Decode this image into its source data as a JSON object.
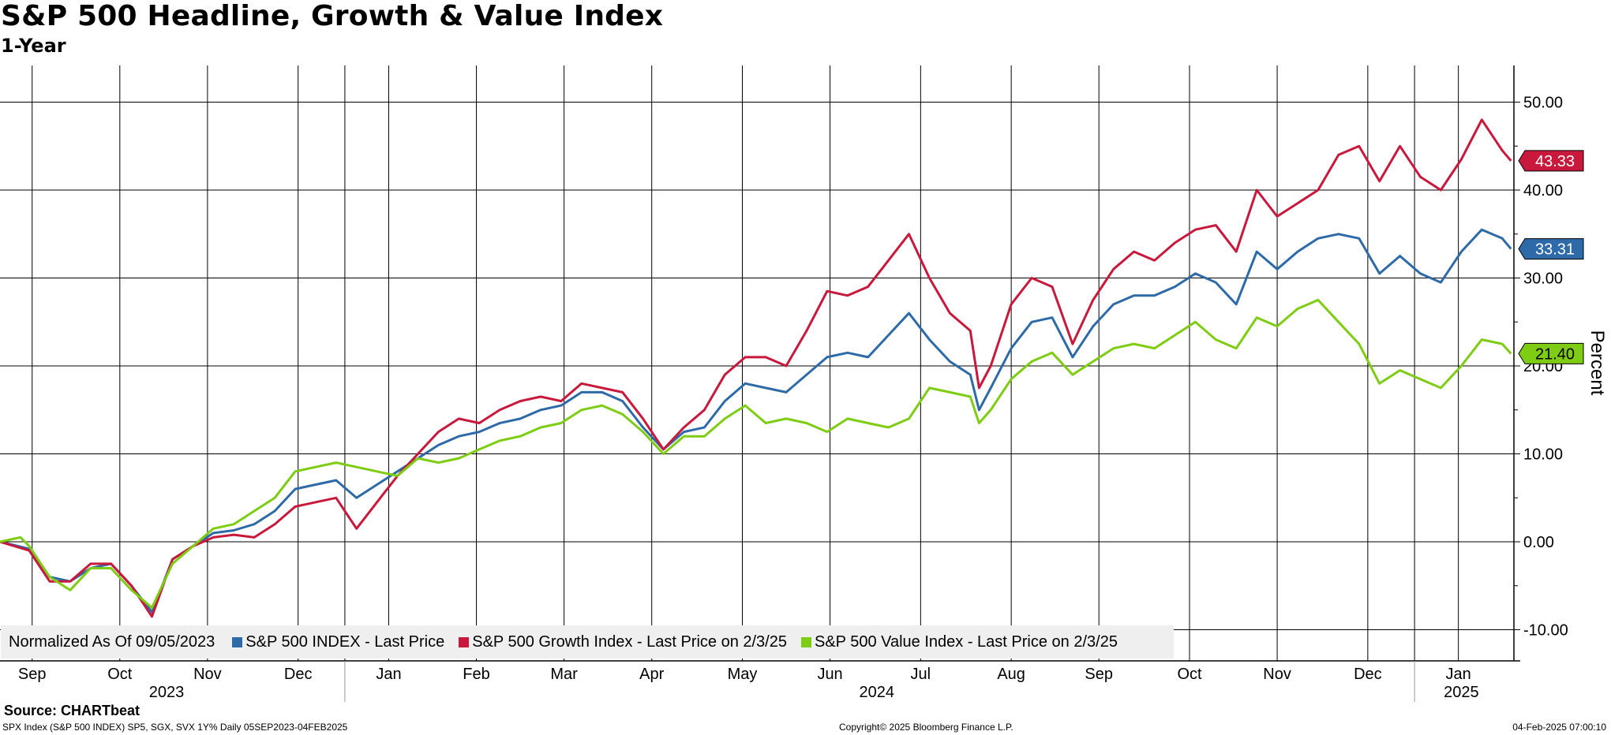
{
  "header": {
    "title": "S&P 500 Headline, Growth & Value Index",
    "subtitle": "1-Year"
  },
  "legend": {
    "note": "Normalized As Of 09/05/2023",
    "items": [
      {
        "label": "S&P 500 INDEX - Last Price",
        "color": "#2e6aa8"
      },
      {
        "label": "S&P 500 Growth Index - Last Price on 2/3/25",
        "color": "#c8193c"
      },
      {
        "label": "S&P 500 Value Index - Last Price on 2/3/25",
        "color": "#7ecc14"
      }
    ]
  },
  "footer": {
    "source": "Source: CHARTbeat",
    "left": "SPX Index (S&P 500 INDEX) SP5, SGX, SVX 1Y%  Daily 05SEP2023-04FEB2025",
    "middle": "Copyright© 2025 Bloomberg Finance L.P.",
    "right": "04-Feb-2025 07:00:10"
  },
  "chart_data": {
    "type": "line",
    "title": "S&P 500 Headline, Growth & Value Index",
    "subtitle": "1-Year",
    "ylabel": "Percent",
    "y_axis_position": "right",
    "ylim": [
      -14,
      53
    ],
    "yticks": [
      "50.00",
      "40.00",
      "30.00",
      "20.00",
      "10.00",
      "0.00",
      "-10.00"
    ],
    "ytick_values": [
      50,
      40,
      30,
      20,
      10,
      0,
      -10
    ],
    "xlim": [
      "2023-09-05",
      "2025-02-04"
    ],
    "month_labels": [
      "Sep",
      "Oct",
      "Nov",
      "Dec",
      "Jan",
      "Feb",
      "Mar",
      "Apr",
      "May",
      "Jun",
      "Jul",
      "Aug",
      "Sep",
      "Oct",
      "Nov",
      "Dec",
      "Jan"
    ],
    "month_label_dates": [
      "2023-09-16",
      "2023-10-16",
      "2023-11-15",
      "2023-12-16",
      "2024-01-16",
      "2024-02-15",
      "2024-03-16",
      "2024-04-15",
      "2024-05-16",
      "2024-06-15",
      "2024-07-16",
      "2024-08-16",
      "2024-09-15",
      "2024-10-16",
      "2024-11-15",
      "2024-12-16",
      "2025-01-16"
    ],
    "year_labels": [
      "2023",
      "2024",
      "2025"
    ],
    "year_label_dates": [
      "2023-11-01",
      "2024-07-01",
      "2025-01-17"
    ],
    "vertical_gridlines": [
      "2023-09-16",
      "2023-10-16",
      "2023-11-15",
      "2023-12-16",
      "2024-01-01",
      "2024-01-16",
      "2024-02-15",
      "2024-03-16",
      "2024-04-15",
      "2024-05-16",
      "2024-06-15",
      "2024-07-16",
      "2024-08-16",
      "2024-09-15",
      "2024-10-16",
      "2024-11-15",
      "2024-12-16",
      "2025-01-01",
      "2025-01-16"
    ],
    "grid": true,
    "legend_position": "bottom-left",
    "series": [
      {
        "name": "S&P 500 INDEX - Last Price",
        "color": "#2e6aa8",
        "last_value": "33.31",
        "points": [
          [
            "2023-09-05",
            0
          ],
          [
            "2023-09-15",
            -0.8
          ],
          [
            "2023-09-22",
            -4
          ],
          [
            "2023-09-29",
            -4.5
          ],
          [
            "2023-10-06",
            -3
          ],
          [
            "2023-10-13",
            -2.5
          ],
          [
            "2023-10-20",
            -5
          ],
          [
            "2023-10-27",
            -8
          ],
          [
            "2023-11-03",
            -2
          ],
          [
            "2023-11-10",
            -0.5
          ],
          [
            "2023-11-17",
            1
          ],
          [
            "2023-11-24",
            1.3
          ],
          [
            "2023-12-01",
            2
          ],
          [
            "2023-12-08",
            3.5
          ],
          [
            "2023-12-15",
            6
          ],
          [
            "2023-12-22",
            6.5
          ],
          [
            "2023-12-29",
            7
          ],
          [
            "2024-01-05",
            5
          ],
          [
            "2024-01-12",
            6.5
          ],
          [
            "2024-01-19",
            8
          ],
          [
            "2024-01-26",
            9.5
          ],
          [
            "2024-02-02",
            11
          ],
          [
            "2024-02-09",
            12
          ],
          [
            "2024-02-16",
            12.5
          ],
          [
            "2024-02-23",
            13.5
          ],
          [
            "2024-03-01",
            14
          ],
          [
            "2024-03-08",
            15
          ],
          [
            "2024-03-15",
            15.5
          ],
          [
            "2024-03-22",
            17
          ],
          [
            "2024-03-29",
            17
          ],
          [
            "2024-04-05",
            16
          ],
          [
            "2024-04-12",
            13
          ],
          [
            "2024-04-19",
            10.5
          ],
          [
            "2024-04-26",
            12.5
          ],
          [
            "2024-05-03",
            13
          ],
          [
            "2024-05-10",
            16
          ],
          [
            "2024-05-17",
            18
          ],
          [
            "2024-05-24",
            17.5
          ],
          [
            "2024-05-31",
            17
          ],
          [
            "2024-06-07",
            19
          ],
          [
            "2024-06-14",
            21
          ],
          [
            "2024-06-21",
            21.5
          ],
          [
            "2024-06-28",
            21
          ],
          [
            "2024-07-05",
            23.5
          ],
          [
            "2024-07-12",
            26
          ],
          [
            "2024-07-19",
            23
          ],
          [
            "2024-07-26",
            20.5
          ],
          [
            "2024-08-02",
            19
          ],
          [
            "2024-08-05",
            15
          ],
          [
            "2024-08-09",
            17.5
          ],
          [
            "2024-08-16",
            22
          ],
          [
            "2024-08-23",
            25
          ],
          [
            "2024-08-30",
            25.5
          ],
          [
            "2024-09-06",
            21
          ],
          [
            "2024-09-13",
            24.5
          ],
          [
            "2024-09-20",
            27
          ],
          [
            "2024-09-27",
            28
          ],
          [
            "2024-10-04",
            28
          ],
          [
            "2024-10-11",
            29
          ],
          [
            "2024-10-18",
            30.5
          ],
          [
            "2024-10-25",
            29.5
          ],
          [
            "2024-11-01",
            27
          ],
          [
            "2024-11-08",
            33
          ],
          [
            "2024-11-15",
            31
          ],
          [
            "2024-11-22",
            33
          ],
          [
            "2024-11-29",
            34.5
          ],
          [
            "2024-12-06",
            35
          ],
          [
            "2024-12-13",
            34.5
          ],
          [
            "2024-12-20",
            30.5
          ],
          [
            "2024-12-27",
            32.5
          ],
          [
            "2025-01-03",
            30.5
          ],
          [
            "2025-01-10",
            29.5
          ],
          [
            "2025-01-17",
            33
          ],
          [
            "2025-01-24",
            35.5
          ],
          [
            "2025-01-31",
            34.5
          ],
          [
            "2025-02-03",
            33.31
          ]
        ]
      },
      {
        "name": "S&P 500 Growth Index - Last Price on 2/3/25",
        "color": "#c8193c",
        "last_value": "43.33",
        "points": [
          [
            "2023-09-05",
            0
          ],
          [
            "2023-09-15",
            -1
          ],
          [
            "2023-09-22",
            -4.5
          ],
          [
            "2023-09-29",
            -4.5
          ],
          [
            "2023-10-06",
            -2.5
          ],
          [
            "2023-10-13",
            -2.5
          ],
          [
            "2023-10-20",
            -5
          ],
          [
            "2023-10-27",
            -8.5
          ],
          [
            "2023-11-03",
            -2
          ],
          [
            "2023-11-10",
            -0.5
          ],
          [
            "2023-11-17",
            0.5
          ],
          [
            "2023-11-24",
            0.8
          ],
          [
            "2023-12-01",
            0.5
          ],
          [
            "2023-12-08",
            2
          ],
          [
            "2023-12-15",
            4
          ],
          [
            "2023-12-22",
            4.5
          ],
          [
            "2023-12-29",
            5
          ],
          [
            "2024-01-05",
            1.5
          ],
          [
            "2024-01-12",
            4.5
          ],
          [
            "2024-01-19",
            7.5
          ],
          [
            "2024-01-26",
            10
          ],
          [
            "2024-02-02",
            12.5
          ],
          [
            "2024-02-09",
            14
          ],
          [
            "2024-02-16",
            13.5
          ],
          [
            "2024-02-23",
            15
          ],
          [
            "2024-03-01",
            16
          ],
          [
            "2024-03-08",
            16.5
          ],
          [
            "2024-03-15",
            16
          ],
          [
            "2024-03-22",
            18
          ],
          [
            "2024-03-29",
            17.5
          ],
          [
            "2024-04-05",
            17
          ],
          [
            "2024-04-12",
            14
          ],
          [
            "2024-04-19",
            10.5
          ],
          [
            "2024-04-26",
            13
          ],
          [
            "2024-05-03",
            15
          ],
          [
            "2024-05-10",
            19
          ],
          [
            "2024-05-17",
            21
          ],
          [
            "2024-05-24",
            21
          ],
          [
            "2024-05-31",
            20
          ],
          [
            "2024-06-07",
            24
          ],
          [
            "2024-06-14",
            28.5
          ],
          [
            "2024-06-21",
            28
          ],
          [
            "2024-06-28",
            29
          ],
          [
            "2024-07-05",
            32
          ],
          [
            "2024-07-12",
            35
          ],
          [
            "2024-07-19",
            30
          ],
          [
            "2024-07-26",
            26
          ],
          [
            "2024-08-02",
            24
          ],
          [
            "2024-08-05",
            17.5
          ],
          [
            "2024-08-09",
            20
          ],
          [
            "2024-08-16",
            27
          ],
          [
            "2024-08-23",
            30
          ],
          [
            "2024-08-30",
            29
          ],
          [
            "2024-09-06",
            22.5
          ],
          [
            "2024-09-13",
            27.5
          ],
          [
            "2024-09-20",
            31
          ],
          [
            "2024-09-27",
            33
          ],
          [
            "2024-10-04",
            32
          ],
          [
            "2024-10-11",
            34
          ],
          [
            "2024-10-18",
            35.5
          ],
          [
            "2024-10-25",
            36
          ],
          [
            "2024-11-01",
            33
          ],
          [
            "2024-11-08",
            40
          ],
          [
            "2024-11-15",
            37
          ],
          [
            "2024-11-22",
            38.5
          ],
          [
            "2024-11-29",
            40
          ],
          [
            "2024-12-06",
            44
          ],
          [
            "2024-12-13",
            45
          ],
          [
            "2024-12-20",
            41
          ],
          [
            "2024-12-27",
            45
          ],
          [
            "2025-01-03",
            41.5
          ],
          [
            "2025-01-10",
            40
          ],
          [
            "2025-01-17",
            43.5
          ],
          [
            "2025-01-24",
            48
          ],
          [
            "2025-01-31",
            44.5
          ],
          [
            "2025-02-03",
            43.33
          ]
        ]
      },
      {
        "name": "S&P 500 Value Index - Last Price on 2/3/25",
        "color": "#7ecc14",
        "last_value": "21.40",
        "points": [
          [
            "2023-09-05",
            0
          ],
          [
            "2023-09-12",
            0.5
          ],
          [
            "2023-09-15",
            -0.5
          ],
          [
            "2023-09-22",
            -4
          ],
          [
            "2023-09-29",
            -5.5
          ],
          [
            "2023-10-06",
            -3
          ],
          [
            "2023-10-13",
            -3
          ],
          [
            "2023-10-20",
            -5.5
          ],
          [
            "2023-10-27",
            -7.5
          ],
          [
            "2023-11-03",
            -2.5
          ],
          [
            "2023-11-10",
            -0.5
          ],
          [
            "2023-11-17",
            1.5
          ],
          [
            "2023-11-24",
            2
          ],
          [
            "2023-12-01",
            3.5
          ],
          [
            "2023-12-08",
            5
          ],
          [
            "2023-12-15",
            8
          ],
          [
            "2023-12-22",
            8.5
          ],
          [
            "2023-12-29",
            9
          ],
          [
            "2024-01-05",
            8.5
          ],
          [
            "2024-01-12",
            8
          ],
          [
            "2024-01-19",
            7.5
          ],
          [
            "2024-01-26",
            9.5
          ],
          [
            "2024-02-02",
            9
          ],
          [
            "2024-02-09",
            9.5
          ],
          [
            "2024-02-16",
            10.5
          ],
          [
            "2024-02-23",
            11.5
          ],
          [
            "2024-03-01",
            12
          ],
          [
            "2024-03-08",
            13
          ],
          [
            "2024-03-15",
            13.5
          ],
          [
            "2024-03-22",
            15
          ],
          [
            "2024-03-29",
            15.5
          ],
          [
            "2024-04-05",
            14.5
          ],
          [
            "2024-04-12",
            12.5
          ],
          [
            "2024-04-19",
            10
          ],
          [
            "2024-04-26",
            12
          ],
          [
            "2024-05-03",
            12
          ],
          [
            "2024-05-10",
            14
          ],
          [
            "2024-05-17",
            15.5
          ],
          [
            "2024-05-24",
            13.5
          ],
          [
            "2024-05-31",
            14
          ],
          [
            "2024-06-07",
            13.5
          ],
          [
            "2024-06-14",
            12.5
          ],
          [
            "2024-06-21",
            14
          ],
          [
            "2024-06-28",
            13.5
          ],
          [
            "2024-07-05",
            13
          ],
          [
            "2024-07-12",
            14
          ],
          [
            "2024-07-19",
            17.5
          ],
          [
            "2024-07-26",
            17
          ],
          [
            "2024-08-02",
            16.5
          ],
          [
            "2024-08-05",
            13.5
          ],
          [
            "2024-08-09",
            15
          ],
          [
            "2024-08-16",
            18.5
          ],
          [
            "2024-08-23",
            20.5
          ],
          [
            "2024-08-30",
            21.5
          ],
          [
            "2024-09-06",
            19
          ],
          [
            "2024-09-13",
            20.5
          ],
          [
            "2024-09-20",
            22
          ],
          [
            "2024-09-27",
            22.5
          ],
          [
            "2024-10-04",
            22
          ],
          [
            "2024-10-11",
            23.5
          ],
          [
            "2024-10-18",
            25
          ],
          [
            "2024-10-25",
            23
          ],
          [
            "2024-11-01",
            22
          ],
          [
            "2024-11-08",
            25.5
          ],
          [
            "2024-11-15",
            24.5
          ],
          [
            "2024-11-22",
            26.5
          ],
          [
            "2024-11-29",
            27.5
          ],
          [
            "2024-12-06",
            25
          ],
          [
            "2024-12-13",
            22.5
          ],
          [
            "2024-12-20",
            18
          ],
          [
            "2024-12-27",
            19.5
          ],
          [
            "2025-01-03",
            18.5
          ],
          [
            "2025-01-10",
            17.5
          ],
          [
            "2025-01-17",
            20
          ],
          [
            "2025-01-24",
            23
          ],
          [
            "2025-01-31",
            22.5
          ],
          [
            "2025-02-03",
            21.4
          ]
        ]
      }
    ]
  }
}
